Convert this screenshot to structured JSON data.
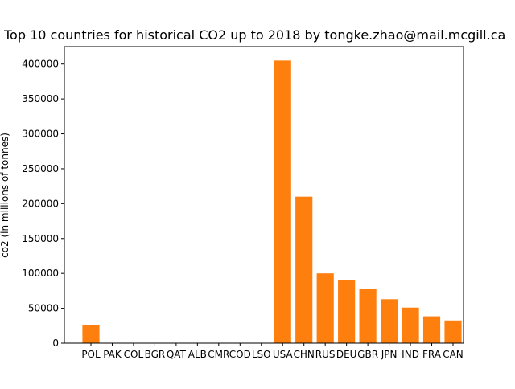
{
  "chart_data": {
    "type": "bar",
    "title": "Top 10 countries for historical CO2 up to 2018 by tongke.zhao@mail.mcgill.ca",
    "xlabel": "",
    "ylabel": "co2 (in millions of tonnes)",
    "ylim": [
      0,
      425000
    ],
    "yticks": [
      0,
      50000,
      100000,
      150000,
      200000,
      250000,
      300000,
      350000,
      400000
    ],
    "ytick_labels": [
      "0",
      "50000",
      "100000",
      "150000",
      "200000",
      "250000",
      "300000",
      "350000",
      "400000"
    ],
    "categories": [
      "POL",
      "PAK",
      "COL",
      "BGR",
      "QAT",
      "ALB",
      "CMR",
      "COD",
      "LSO",
      "USA",
      "CHN",
      "RUS",
      "DEU",
      "GBR",
      "JPN",
      "IND",
      "FRA",
      "CAN"
    ],
    "values": [
      26500,
      0,
      0,
      0,
      0,
      0,
      0,
      0,
      0,
      405000,
      210000,
      100000,
      91000,
      77500,
      63000,
      51000,
      38500,
      32500
    ],
    "bar_color": "#ff7f0e",
    "grid": false,
    "legend": "none"
  }
}
